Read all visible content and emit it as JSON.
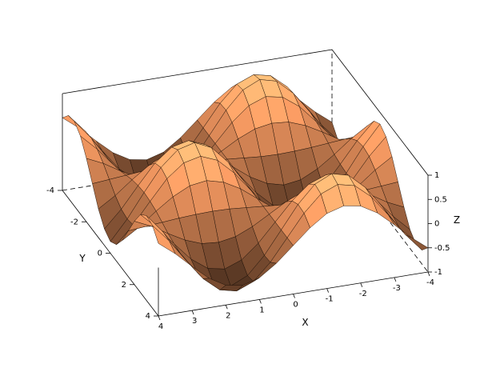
{
  "chart_data": {
    "type": "surface",
    "xlabel": "X",
    "ylabel": "Y",
    "zlabel": "Z",
    "colormap": "copper",
    "mesh": true,
    "box": true,
    "xlim": [
      -4,
      4
    ],
    "ylim": [
      -4,
      4
    ],
    "zlim": [
      -1,
      1
    ],
    "xticks": [
      -4,
      -3,
      -2,
      -1,
      0,
      1,
      2,
      3,
      4
    ],
    "yticks": [
      -4,
      -2,
      0,
      2,
      4
    ],
    "zticks": [
      -1,
      -0.5,
      0,
      0.5,
      1
    ],
    "x": [
      -4,
      -3.5,
      -3,
      -2.5,
      -2,
      -1.5,
      -1,
      -0.5,
      0,
      0.5,
      1,
      1.5,
      2,
      2.5,
      3,
      3.5,
      4
    ],
    "y": [
      -4,
      -3.5,
      -3,
      -2.5,
      -2,
      -1.5,
      -1,
      -0.5,
      0,
      0.5,
      1,
      1.5,
      2,
      2.5,
      3,
      3.5,
      4
    ],
    "z": [
      [
        -0.5,
        -0.23,
        0.09,
        0.39,
        0.59,
        0.65,
        0.55,
        0.31,
        0,
        -0.31,
        -0.55,
        -0.65,
        -0.59,
        -0.39,
        -0.09,
        0.23,
        0.5
      ],
      [
        -0.71,
        -0.33,
        0.13,
        0.56,
        0.85,
        0.93,
        0.79,
        0.45,
        0,
        -0.45,
        -0.79,
        -0.93,
        -0.85,
        -0.56,
        -0.13,
        0.33,
        0.71
      ],
      [
        -0.75,
        -0.35,
        0.14,
        0.59,
        0.9,
        0.99,
        0.83,
        0.47,
        0,
        -0.47,
        -0.83,
        -0.99,
        -0.9,
        -0.59,
        -0.14,
        0.35,
        0.75
      ],
      [
        -0.61,
        -0.28,
        0.11,
        0.48,
        0.73,
        0.8,
        0.67,
        0.38,
        0,
        -0.38,
        -0.67,
        -0.8,
        -0.73,
        -0.48,
        -0.11,
        0.28,
        0.61
      ],
      [
        -0.31,
        -0.15,
        0.06,
        0.25,
        0.38,
        0.41,
        0.35,
        0.2,
        0,
        -0.2,
        -0.35,
        -0.41,
        -0.38,
        -0.25,
        -0.06,
        0.15,
        0.31
      ],
      [
        0.05,
        0.02,
        -0.01,
        -0.04,
        -0.06,
        -0.07,
        -0.06,
        -0.03,
        0,
        0.03,
        0.06,
        0.07,
        0.06,
        0.04,
        0.01,
        -0.02,
        -0.05
      ],
      [
        0.41,
        0.19,
        -0.08,
        -0.32,
        -0.49,
        -0.54,
        -0.45,
        -0.26,
        0,
        0.26,
        0.45,
        0.54,
        0.49,
        0.32,
        0.08,
        -0.19,
        -0.41
      ],
      [
        0.66,
        0.31,
        -0.12,
        -0.53,
        -0.8,
        -0.88,
        -0.74,
        -0.42,
        0,
        0.42,
        0.74,
        0.88,
        0.8,
        0.53,
        0.12,
        -0.31,
        -0.66
      ],
      [
        0.76,
        0.35,
        -0.14,
        -0.6,
        -0.91,
        -1,
        -0.84,
        -0.48,
        0,
        0.48,
        0.84,
        1,
        0.91,
        0.6,
        0.14,
        -0.35,
        -0.76
      ],
      [
        0.66,
        0.31,
        -0.12,
        -0.53,
        -0.8,
        -0.88,
        -0.74,
        -0.42,
        0,
        0.42,
        0.74,
        0.88,
        0.8,
        0.53,
        0.12,
        -0.31,
        -0.66
      ],
      [
        0.41,
        0.19,
        -0.08,
        -0.32,
        -0.49,
        -0.54,
        -0.45,
        -0.26,
        0,
        0.26,
        0.45,
        0.54,
        0.49,
        0.32,
        0.08,
        -0.19,
        -0.41
      ],
      [
        0.05,
        0.02,
        -0.01,
        -0.04,
        -0.06,
        -0.07,
        -0.06,
        -0.03,
        0,
        0.03,
        0.06,
        0.07,
        0.06,
        0.04,
        0.01,
        -0.02,
        -0.05
      ],
      [
        -0.31,
        -0.15,
        0.06,
        0.25,
        0.38,
        0.41,
        0.35,
        0.2,
        0,
        -0.2,
        -0.35,
        -0.41,
        -0.38,
        -0.25,
        -0.06,
        0.15,
        0.31
      ],
      [
        -0.61,
        -0.28,
        0.11,
        0.48,
        0.73,
        0.8,
        0.67,
        0.38,
        0,
        -0.38,
        -0.67,
        -0.8,
        -0.73,
        -0.48,
        -0.11,
        0.28,
        0.61
      ],
      [
        -0.75,
        -0.35,
        0.14,
        0.59,
        0.9,
        0.99,
        0.83,
        0.47,
        0,
        -0.47,
        -0.83,
        -0.99,
        -0.9,
        -0.59,
        -0.14,
        0.35,
        0.75
      ],
      [
        -0.71,
        -0.33,
        0.13,
        0.56,
        0.85,
        0.93,
        0.79,
        0.45,
        0,
        -0.45,
        -0.79,
        -0.93,
        -0.85,
        -0.56,
        -0.13,
        0.33,
        0.71
      ],
      [
        -0.5,
        -0.23,
        0.09,
        0.39,
        0.59,
        0.65,
        0.55,
        0.31,
        0,
        -0.31,
        -0.55,
        -0.65,
        -0.59,
        -0.39,
        -0.09,
        0.23,
        0.5
      ]
    ]
  }
}
